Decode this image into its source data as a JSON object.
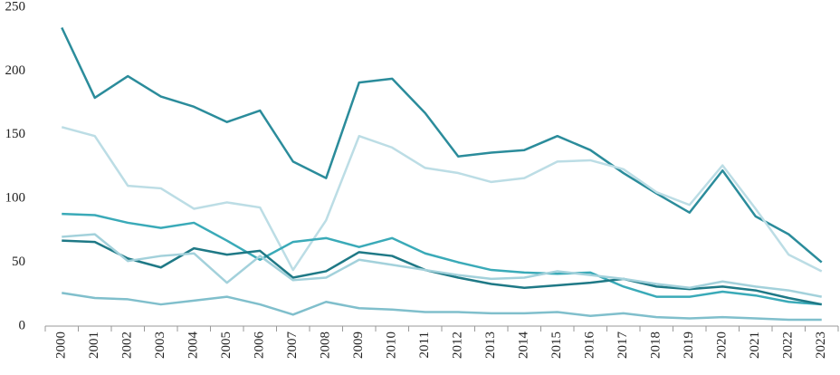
{
  "chart_data": {
    "type": "line",
    "categories": [
      "2000",
      "2001",
      "2002",
      "2003",
      "2004",
      "2005",
      "2006",
      "2007",
      "2008",
      "2009",
      "2010",
      "2011",
      "2012",
      "2013",
      "2014",
      "2015",
      "2016",
      "2017",
      "2018",
      "2019",
      "2020",
      "2021",
      "2022",
      "2023"
    ],
    "series": [
      {
        "color": "#2b8c9b",
        "values": [
          234,
          179,
          196,
          180,
          172,
          160,
          169,
          129,
          116,
          191,
          194,
          167,
          133,
          136,
          138,
          149,
          138,
          120,
          104,
          89,
          122,
          86,
          72,
          50
        ]
      },
      {
        "color": "#bcdde5",
        "values": [
          156,
          149,
          110,
          108,
          92,
          97,
          93,
          44,
          83,
          149,
          140,
          124,
          120,
          113,
          116,
          129,
          130,
          123,
          105,
          95,
          126,
          92,
          56,
          43
        ]
      },
      {
        "color": "#3aaab8",
        "values": [
          88,
          87,
          81,
          77,
          81,
          67,
          52,
          66,
          69,
          62,
          69,
          57,
          50,
          44,
          42,
          41,
          42,
          31,
          23,
          23,
          27,
          24,
          19,
          17
        ]
      },
      {
        "color": "#1f7986",
        "values": [
          67,
          66,
          53,
          46,
          61,
          56,
          59,
          38,
          43,
          58,
          55,
          44,
          38,
          33,
          30,
          32,
          34,
          37,
          31,
          29,
          31,
          28,
          22,
          17
        ]
      },
      {
        "color": "#a3d1db",
        "values": [
          70,
          72,
          51,
          55,
          57,
          34,
          55,
          36,
          38,
          52,
          48,
          44,
          40,
          37,
          38,
          43,
          40,
          37,
          33,
          30,
          35,
          31,
          28,
          23
        ]
      },
      {
        "color": "#80bfcc",
        "values": [
          26,
          22,
          21,
          17,
          20,
          23,
          17,
          9,
          19,
          14,
          13,
          11,
          11,
          10,
          10,
          11,
          8,
          10,
          7,
          6,
          7,
          6,
          5,
          5
        ]
      }
    ],
    "ylim": [
      0,
      250
    ],
    "yticks": [
      0,
      50,
      100,
      150,
      200,
      250
    ]
  }
}
